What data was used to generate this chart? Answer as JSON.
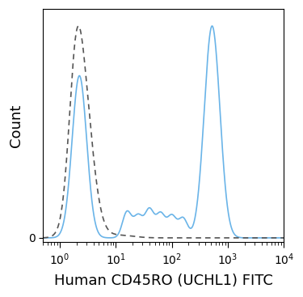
{
  "title": "",
  "xlabel": "Human CD45RO (UCHL1) FITC",
  "ylabel": "Count",
  "xmin": 0.5,
  "xmax": 10000,
  "background_color": "#ffffff",
  "solid_color": "#6ab4e8",
  "dashed_color": "#555555",
  "xlabel_fontsize": 13,
  "ylabel_fontsize": 13
}
